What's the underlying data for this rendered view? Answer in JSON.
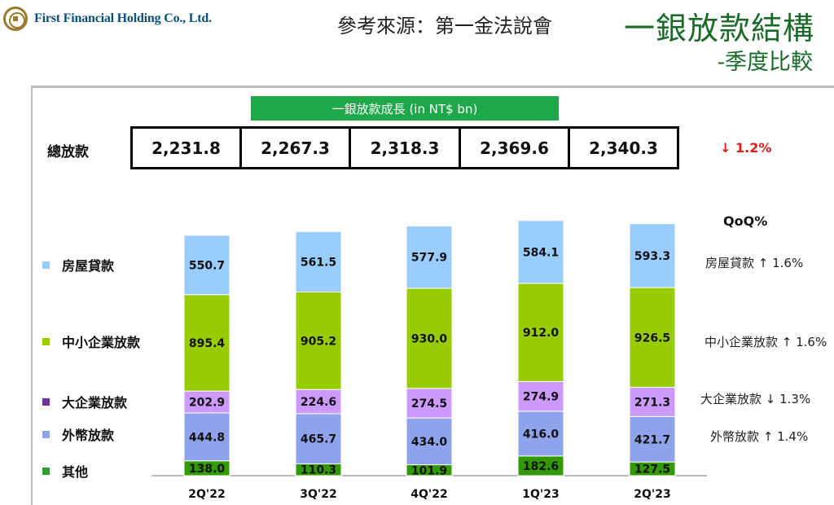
{
  "header": {
    "company": "First Financial Holding Co., Ltd.",
    "source": "參考來源：第一金法說會",
    "title": "一銀放款結構",
    "subtitle": "-季度比較"
  },
  "banner": "一銀放款成長 (in NT$ bn)",
  "totals": {
    "label": "總放款",
    "values": [
      "2,231.8",
      "2,267.3",
      "2,318.3",
      "2,369.6",
      "2,340.3"
    ],
    "qoq": "↓ 1.2%"
  },
  "qoq_title": "QoQ%",
  "qoq": [
    "房屋貸款 ↑ 1.6%",
    "中小企業放款 ↑ 1.6%",
    "大企業放款 ↓ 1.3%",
    "外幣放款 ↑ 1.4%"
  ],
  "colors": {
    "mortgage": "#99ccff",
    "sme": "#99cc00",
    "large_corp": "#cc99ff",
    "fx": "#8ea3eb",
    "other": "#339900",
    "legend_large_corp": "#7030a0",
    "legend_other": "#2e9e2e"
  },
  "chart_data": {
    "type": "bar",
    "stacked": true,
    "categories": [
      "2Q'22",
      "3Q'22",
      "4Q'22",
      "1Q'23",
      "2Q'23"
    ],
    "series": [
      {
        "name": "其他",
        "values": [
          138.0,
          110.3,
          101.9,
          182.6,
          127.5
        ]
      },
      {
        "name": "外幣放款",
        "values": [
          444.8,
          465.7,
          434.0,
          416.0,
          421.7
        ]
      },
      {
        "name": "大企業放款",
        "values": [
          202.9,
          224.6,
          274.5,
          274.9,
          271.3
        ]
      },
      {
        "name": "中小企業放款",
        "values": [
          895.4,
          905.2,
          930.0,
          912.0,
          926.5
        ]
      },
      {
        "name": "房屋貸款",
        "values": [
          550.7,
          561.5,
          577.9,
          584.1,
          593.3
        ]
      }
    ],
    "legend_order": [
      "房屋貸款",
      "中小企業放款",
      "大企業放款",
      "外幣放款",
      "其他"
    ],
    "legend_position": "left",
    "grid": false
  }
}
